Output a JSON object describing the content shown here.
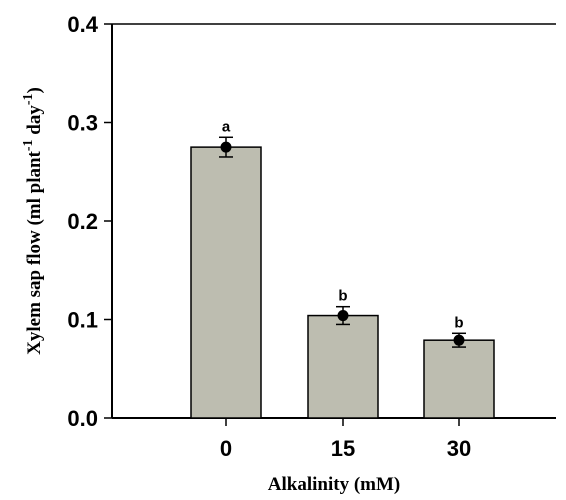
{
  "chart_data": {
    "type": "bar",
    "categories": [
      "0",
      "15",
      "30"
    ],
    "values": [
      0.275,
      0.104,
      0.079
    ],
    "point_values": [
      0.275,
      0.104,
      0.079
    ],
    "error": [
      0.01,
      0.009,
      0.007
    ],
    "significance": [
      "a",
      "b",
      "b"
    ],
    "xlabel": "Alkalinity (mM)",
    "ylabel": {
      "main": "Xylem sap flow (ml plant",
      "sup1": "-1",
      "middle": " day",
      "sup2": "-1",
      "end": ")"
    },
    "ylim": [
      0.0,
      0.4
    ],
    "yticks": [
      "0.0",
      "0.1",
      "0.2",
      "0.3",
      "0.4"
    ],
    "grid": false,
    "legend": "none",
    "colors": {
      "bar": "#bdbdb0",
      "edge": "#000000",
      "point": "#000000"
    }
  }
}
